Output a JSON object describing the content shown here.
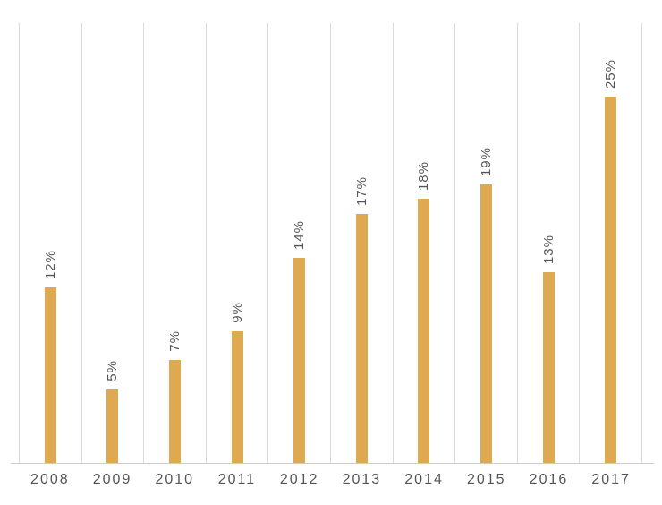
{
  "chart_data": {
    "type": "bar",
    "title": "",
    "xlabel": "",
    "ylabel": "",
    "categories": [
      "2008",
      "2009",
      "2010",
      "2011",
      "2012",
      "2013",
      "2014",
      "2015",
      "2016",
      "2017"
    ],
    "values": [
      12,
      5,
      7,
      9,
      14,
      17,
      18,
      19,
      13,
      25
    ],
    "data_labels": [
      "12%",
      "5%",
      "7%",
      "9%",
      "14%",
      "17%",
      "18%",
      "19%",
      "13%",
      "25%"
    ],
    "data_label_orientation": "rotated-90-ccw",
    "ylim": [
      0,
      30
    ],
    "y_axis_visible": false,
    "grid": "vertical-between-categories",
    "legend": "none",
    "colors": {
      "bar": "#dea951",
      "gridline": "#d9d9d9",
      "axis_line": "#cccccc",
      "label_text": "#555555",
      "background": "#ffffff"
    }
  }
}
